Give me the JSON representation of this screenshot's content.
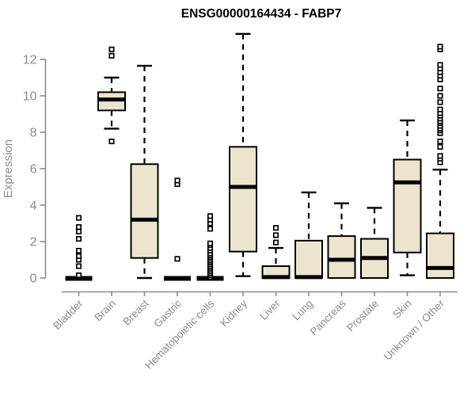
{
  "chart_data": {
    "type": "boxplot",
    "title": "ENSG00000164434 - FABP7",
    "ylabel": "Expression",
    "xlabel": "",
    "yticks": [
      0,
      2,
      4,
      6,
      8,
      10,
      12
    ],
    "ylim": [
      0,
      13.5
    ],
    "grid": false,
    "legend": "none",
    "colors": {
      "box_fill": "#ece5cd",
      "box_stroke": "#000000",
      "median": "#000000",
      "whisker": "#000000",
      "axis": "#8b8b8b",
      "tick_label": "#8b8b8b",
      "title": "#000000"
    },
    "categories": [
      "Bladder",
      "Brain",
      "Breast",
      "Gastric",
      "Hematopoietic cells",
      "Kidney",
      "Liver",
      "Lung",
      "Pancreas",
      "Prostate",
      "Skin",
      "Unknown / Other"
    ],
    "series": [
      {
        "name": "Bladder",
        "whisker_low": 0,
        "q1": 0,
        "median": 0,
        "q3": 0,
        "whisker_high": 0,
        "outliers": [
          0.15,
          0.65,
          1.0,
          1.2,
          1.5,
          2.15,
          2.55,
          2.8,
          3.3
        ]
      },
      {
        "name": "Brain",
        "whisker_low": 8.2,
        "q1": 9.2,
        "median": 9.8,
        "q3": 10.2,
        "whisker_high": 11.0,
        "outliers": [
          7.5,
          12.2,
          12.55
        ]
      },
      {
        "name": "Breast",
        "whisker_low": 0,
        "q1": 1.1,
        "median": 3.2,
        "q3": 6.25,
        "whisker_high": 11.65,
        "outliers": []
      },
      {
        "name": "Gastric",
        "whisker_low": 0,
        "q1": 0,
        "median": 0,
        "q3": 0,
        "whisker_high": 0,
        "outliers": [
          1.05,
          5.15,
          5.35
        ]
      },
      {
        "name": "Hematopoietic cells",
        "whisker_low": 0,
        "q1": 0,
        "median": 0,
        "q3": 0,
        "whisker_high": 0,
        "outliers": [
          0.05,
          0.15,
          0.25,
          0.35,
          0.45,
          0.55,
          0.65,
          0.75,
          0.85,
          0.95,
          1.05,
          1.15,
          1.25,
          1.35,
          1.5,
          1.65,
          1.8,
          1.9,
          2.7,
          3.0,
          3.2,
          3.4
        ]
      },
      {
        "name": "Kidney",
        "whisker_low": 0.1,
        "q1": 1.45,
        "median": 5.0,
        "q3": 7.2,
        "whisker_high": 13.4,
        "outliers": []
      },
      {
        "name": "Liver",
        "whisker_low": 0,
        "q1": 0,
        "median": 0.05,
        "q3": 0.65,
        "whisker_high": 1.65,
        "outliers": [
          1.95,
          2.35,
          2.75
        ]
      },
      {
        "name": "Lung",
        "whisker_low": 0,
        "q1": 0,
        "median": 0.05,
        "q3": 2.05,
        "whisker_high": 4.7,
        "outliers": []
      },
      {
        "name": "Pancreas",
        "whisker_low": 0,
        "q1": 0,
        "median": 1.0,
        "q3": 2.3,
        "whisker_high": 4.1,
        "outliers": []
      },
      {
        "name": "Prostate",
        "whisker_low": 0,
        "q1": 0,
        "median": 1.1,
        "q3": 2.15,
        "whisker_high": 3.85,
        "outliers": []
      },
      {
        "name": "Skin",
        "whisker_low": 0.15,
        "q1": 1.4,
        "median": 5.25,
        "q3": 6.5,
        "whisker_high": 8.65,
        "outliers": []
      },
      {
        "name": "Unknown / Other",
        "whisker_low": 0,
        "q1": 0,
        "median": 0.55,
        "q3": 2.45,
        "whisker_high": 5.95,
        "outliers": [
          6.35,
          6.55,
          6.7,
          7.2,
          7.5,
          7.95,
          8.1,
          8.2,
          8.35,
          8.5,
          8.6,
          8.75,
          8.9,
          9.05,
          9.25,
          9.65,
          10.0,
          10.4,
          10.9,
          11.1,
          11.3,
          11.5,
          11.7,
          12.55,
          12.7
        ]
      }
    ]
  }
}
